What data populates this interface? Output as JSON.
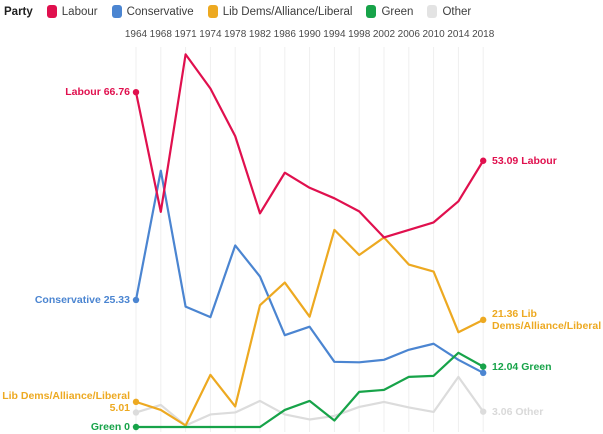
{
  "legend": {
    "title": "Party",
    "items": [
      {
        "label": "Labour",
        "color": "#e0104e"
      },
      {
        "label": "Conservative",
        "color": "#4b85d1"
      },
      {
        "label": "Lib Dems/Alliance/Liberal",
        "color": "#eda921"
      },
      {
        "label": "Green",
        "color": "#17a349"
      },
      {
        "label": "Other",
        "color": "#e3e3e3"
      }
    ]
  },
  "chart_data": {
    "type": "line",
    "title": "",
    "xlabel": "",
    "ylabel": "",
    "x": [
      1964,
      1968,
      1971,
      1974,
      1978,
      1982,
      1986,
      1990,
      1994,
      1998,
      2002,
      2006,
      2010,
      2014,
      2018
    ],
    "ylim": [
      0,
      75
    ],
    "grid": "vertical-only",
    "axis_position": "top",
    "legend_position": "top-left",
    "series": [
      {
        "name": "Labour",
        "color": "#e0104e",
        "label_color": "#e0104e",
        "values": [
          66.76,
          42.9,
          74.3,
          67.5,
          58.0,
          42.6,
          50.7,
          47.7,
          45.6,
          43.0,
          37.8,
          39.3,
          40.8,
          45.0,
          53.09
        ],
        "start_label": "Labour 66.76",
        "end_label": "53.09 Labour"
      },
      {
        "name": "Conservative",
        "color": "#4b85d1",
        "label_color": "#4b85d1",
        "values": [
          25.33,
          51.1,
          24.0,
          21.9,
          36.2,
          30.0,
          18.3,
          20.0,
          13.0,
          12.9,
          13.4,
          15.4,
          16.6,
          13.4,
          10.8
        ],
        "start_label": "Conservative 25.33",
        "end_label": ""
      },
      {
        "name": "Lib Dems/Alliance/Liberal",
        "color": "#eda921",
        "label_color": "#eda921",
        "values": [
          5.01,
          3.4,
          0.3,
          10.4,
          4.1,
          24.3,
          28.8,
          22.0,
          39.3,
          34.3,
          37.8,
          32.4,
          31.0,
          18.9,
          21.36
        ],
        "start_label": "Lib Dems/Alliance/Liberal\n5.01",
        "end_label": "21.36 Lib\nDems/Alliance/Liberal"
      },
      {
        "name": "Green",
        "color": "#17a349",
        "label_color": "#17a349",
        "values": [
          0,
          0,
          0,
          0,
          0,
          0,
          3.4,
          5.2,
          1.3,
          7.0,
          7.4,
          10.0,
          10.2,
          14.8,
          12.04
        ],
        "start_label": "Green 0",
        "end_label": "12.04 Green"
      },
      {
        "name": "Other",
        "color": "#dcdcdc",
        "label_color": "#d9d9d9",
        "values": [
          2.9,
          4.4,
          0.3,
          2.5,
          2.9,
          5.2,
          2.5,
          1.5,
          2.2,
          4.0,
          5.0,
          3.9,
          3.0,
          10.0,
          3.06
        ],
        "start_label": "",
        "end_label": "3.06 Other"
      }
    ]
  }
}
